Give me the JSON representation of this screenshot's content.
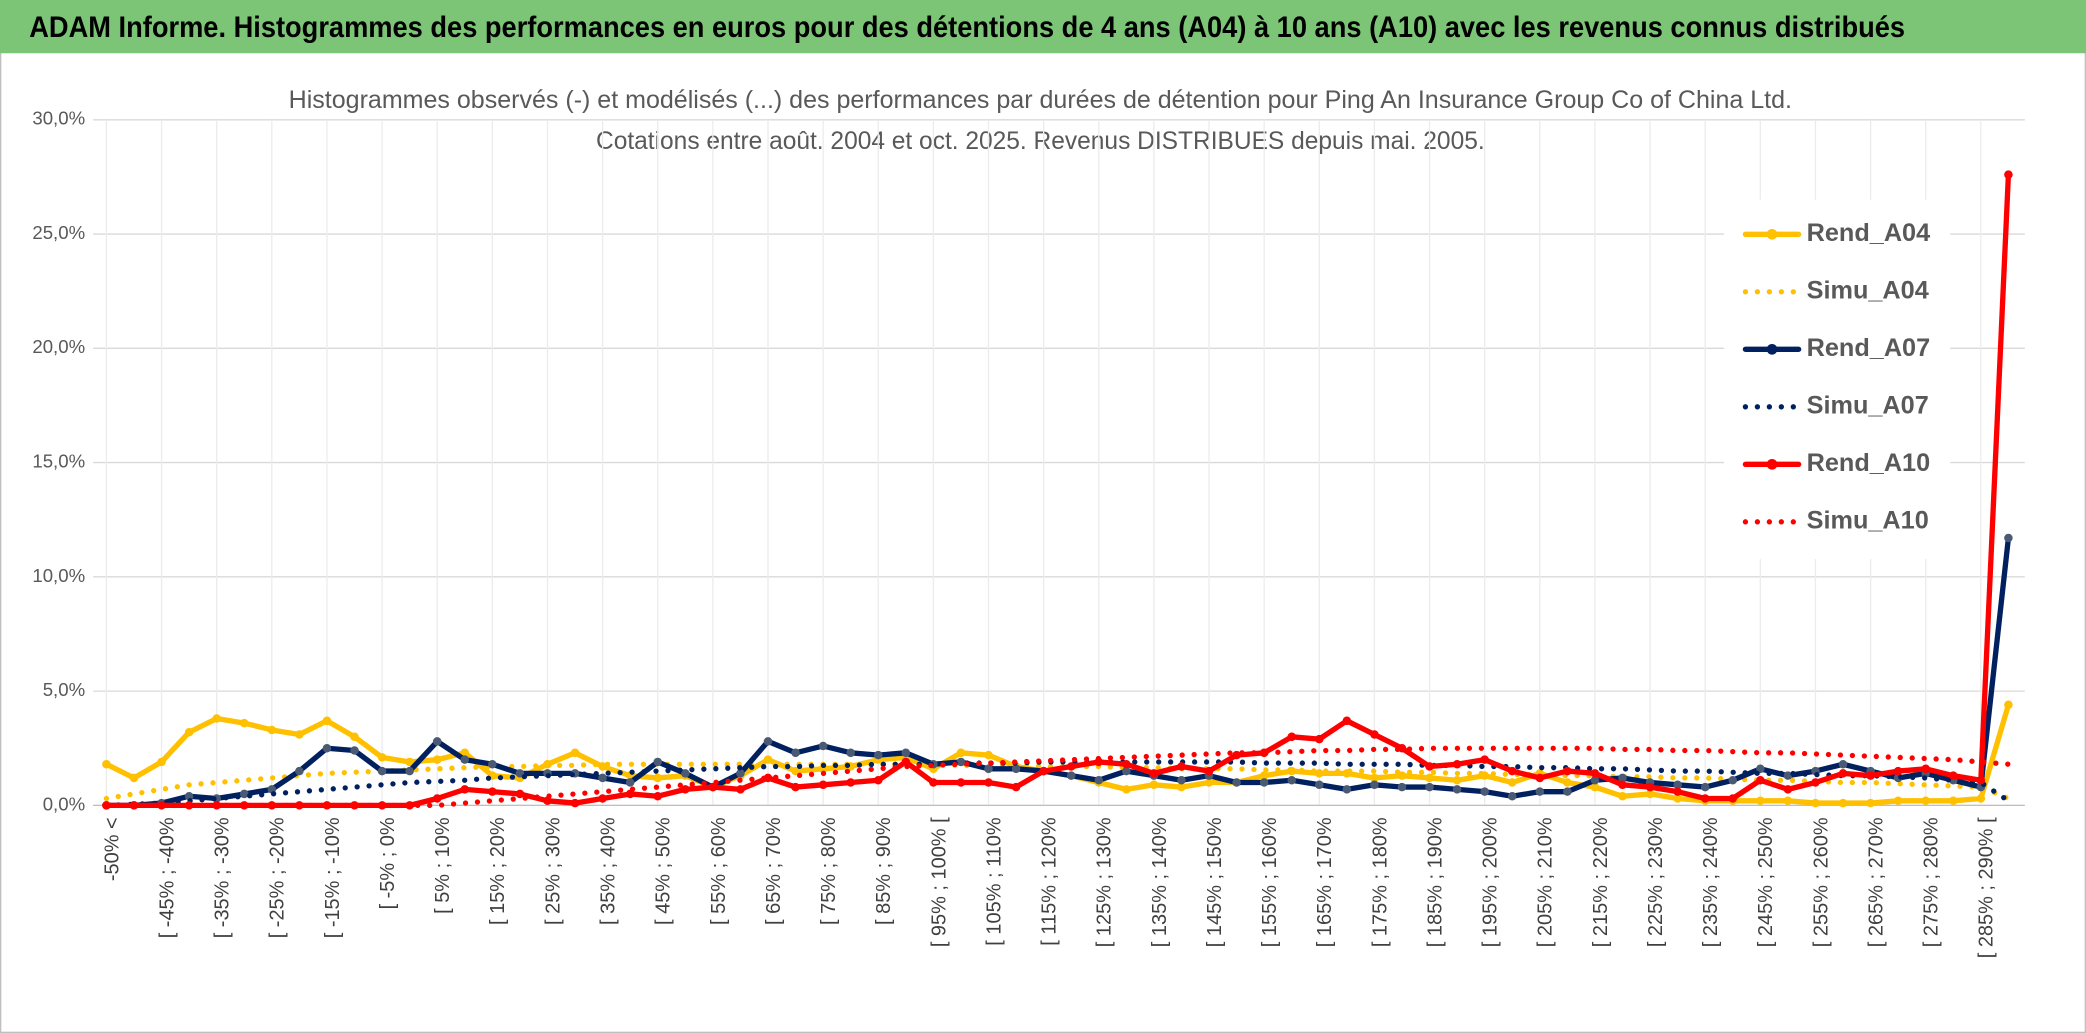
{
  "chart_data": {
    "type": "line",
    "title": "ADAM Informe. Histogrammes des performances en euros pour des détentions de 4 ans (A04) à 10 ans (A10) avec les revenus connus distribués",
    "chart_title": [
      "Histogrammes observés (-) et modélisés (...) des performances par durées de détention pour Ping An Insurance Group Co of China Ltd.",
      "Cotations entre août. 2004 et oct. 2025. Revenus DISTRIBUES depuis mai. 2005."
    ],
    "categories": [
      "-50% <",
      null,
      "[ -45% ; -40%",
      null,
      "[ -35% ; -30%",
      null,
      "[ -25% ; -20%",
      null,
      "[ -15% ; -10%",
      null,
      "[ -5% ; 0%",
      null,
      "[ 5% ; 10%",
      null,
      "[ 15% ; 20%",
      null,
      "[ 25% ; 30%",
      null,
      "[ 35% ; 40%",
      null,
      "[ 45% ; 50%",
      null,
      "[ 55% ; 60%",
      null,
      "[ 65% ; 70%",
      null,
      "[ 75% ; 80%",
      null,
      "[ 85% ; 90%",
      null,
      "[ 95% ; 100% [",
      null,
      "[ 105% ; 110%",
      null,
      "[ 115% ; 120%",
      null,
      "[ 125% ; 130%",
      null,
      "[ 135% ; 140%",
      null,
      "[ 145% ; 150%",
      null,
      "[ 155% ; 160%",
      null,
      "[ 165% ; 170%",
      null,
      "[ 175% ; 180%",
      null,
      "[ 185% ; 190%",
      null,
      "[ 195% ; 200%",
      null,
      "[ 205% ; 210%",
      null,
      "[ 215% ; 220%",
      null,
      "[ 225% ; 230%",
      null,
      "[ 235% ; 240%",
      null,
      "[ 245% ; 250%",
      null,
      "[ 255% ; 260%",
      null,
      "[ 265% ; 270%",
      null,
      "[ 275% ; 280%",
      null,
      "[ 285% ; 290% [",
      null
    ],
    "series": [
      {
        "name": "Rend_A04",
        "color": "#ffc000",
        "style": "solid",
        "values": [
          1.8,
          1.2,
          1.9,
          3.2,
          3.8,
          3.6,
          3.3,
          3.1,
          3.7,
          3.0,
          2.1,
          1.9,
          2.0,
          2.3,
          1.3,
          1.2,
          1.8,
          2.3,
          1.7,
          1.3,
          1.2,
          1.3,
          0.8,
          1.3,
          2.0,
          1.5,
          1.6,
          1.7,
          2.0,
          2.1,
          1.6,
          2.3,
          2.2,
          1.7,
          1.5,
          1.3,
          1.0,
          0.7,
          0.9,
          0.8,
          1.0,
          1.0,
          1.3,
          1.5,
          1.4,
          1.4,
          1.2,
          1.3,
          1.2,
          1.1,
          1.3,
          1.0,
          1.4,
          1.0,
          0.8,
          0.4,
          0.5,
          0.3,
          0.2,
          0.2,
          0.2,
          0.2,
          0.1,
          0.1,
          0.1,
          0.2,
          0.2,
          0.2,
          0.3,
          4.4
        ]
      },
      {
        "name": "Simu_A04",
        "color": "#ffc000",
        "style": "dotted",
        "values": [
          0.3,
          0.5,
          0.7,
          0.9,
          1.0,
          1.1,
          1.2,
          1.3,
          1.4,
          1.45,
          1.5,
          1.55,
          1.6,
          1.65,
          1.7,
          1.7,
          1.75,
          1.75,
          1.8,
          1.8,
          1.8,
          1.8,
          1.8,
          1.8,
          1.8,
          1.8,
          1.8,
          1.8,
          1.8,
          1.8,
          1.8,
          1.75,
          1.75,
          1.75,
          1.7,
          1.7,
          1.7,
          1.65,
          1.65,
          1.6,
          1.6,
          1.6,
          1.55,
          1.55,
          1.5,
          1.5,
          1.5,
          1.45,
          1.45,
          1.4,
          1.4,
          1.35,
          1.35,
          1.3,
          1.3,
          1.25,
          1.25,
          1.2,
          1.2,
          1.15,
          1.1,
          1.1,
          1.05,
          1.0,
          1.0,
          0.95,
          0.9,
          0.85,
          0.8,
          0.3
        ]
      },
      {
        "name": "Rend_A07",
        "color": "#002060",
        "style": "solid",
        "values": [
          0,
          0,
          0.1,
          0.4,
          0.3,
          0.5,
          0.7,
          1.5,
          2.5,
          2.4,
          1.5,
          1.5,
          2.8,
          2.0,
          1.8,
          1.4,
          1.4,
          1.4,
          1.2,
          1.0,
          1.9,
          1.4,
          0.8,
          1.4,
          2.8,
          2.3,
          2.6,
          2.3,
          2.2,
          2.3,
          1.8,
          1.9,
          1.6,
          1.6,
          1.5,
          1.3,
          1.1,
          1.5,
          1.3,
          1.1,
          1.3,
          1.0,
          1.0,
          1.1,
          0.9,
          0.7,
          0.9,
          0.8,
          0.8,
          0.7,
          0.6,
          0.4,
          0.6,
          0.6,
          1.1,
          1.2,
          1.0,
          0.9,
          0.8,
          1.1,
          1.6,
          1.3,
          1.5,
          1.8,
          1.5,
          1.2,
          1.4,
          1.1,
          0.8,
          11.7
        ]
      },
      {
        "name": "Simu_A07",
        "color": "#002060",
        "style": "dotted",
        "values": [
          0,
          0.05,
          0.1,
          0.2,
          0.3,
          0.4,
          0.5,
          0.6,
          0.7,
          0.8,
          0.9,
          1.0,
          1.05,
          1.1,
          1.2,
          1.25,
          1.3,
          1.35,
          1.4,
          1.45,
          1.5,
          1.55,
          1.6,
          1.65,
          1.7,
          1.7,
          1.75,
          1.75,
          1.8,
          1.8,
          1.8,
          1.85,
          1.85,
          1.85,
          1.9,
          1.9,
          1.9,
          1.9,
          1.9,
          1.9,
          1.9,
          1.9,
          1.85,
          1.85,
          1.85,
          1.8,
          1.8,
          1.8,
          1.75,
          1.75,
          1.7,
          1.7,
          1.65,
          1.65,
          1.6,
          1.6,
          1.55,
          1.5,
          1.5,
          1.45,
          1.4,
          1.4,
          1.35,
          1.3,
          1.3,
          1.25,
          1.2,
          1.1,
          1.0,
          0.2
        ]
      },
      {
        "name": "Rend_A10",
        "color": "#ff0000",
        "style": "solid",
        "values": [
          0,
          0,
          0,
          0,
          0,
          0,
          0,
          0,
          0,
          0,
          0,
          0,
          0.3,
          0.7,
          0.6,
          0.5,
          0.2,
          0.1,
          0.3,
          0.5,
          0.4,
          0.7,
          0.8,
          0.7,
          1.2,
          0.8,
          0.9,
          1.0,
          1.1,
          1.9,
          1.0,
          1.0,
          1.0,
          0.8,
          1.5,
          1.7,
          1.9,
          1.8,
          1.4,
          1.7,
          1.5,
          2.2,
          2.3,
          3.0,
          2.9,
          3.7,
          3.1,
          2.5,
          1.7,
          1.8,
          2.0,
          1.5,
          1.2,
          1.5,
          1.4,
          0.9,
          0.8,
          0.6,
          0.3,
          0.3,
          1.1,
          0.7,
          1.0,
          1.4,
          1.3,
          1.5,
          1.6,
          1.3,
          1.1,
          27.6
        ]
      },
      {
        "name": "Simu_A10",
        "color": "#ff0000",
        "style": "dotted",
        "values": [
          0,
          0,
          0,
          0,
          0,
          0,
          0,
          0,
          0,
          0,
          0,
          0,
          0,
          0.1,
          0.2,
          0.3,
          0.4,
          0.5,
          0.6,
          0.7,
          0.8,
          0.9,
          1.0,
          1.1,
          1.2,
          1.3,
          1.4,
          1.5,
          1.6,
          1.7,
          1.75,
          1.8,
          1.85,
          1.9,
          1.95,
          2.0,
          2.05,
          2.1,
          2.15,
          2.2,
          2.25,
          2.3,
          2.3,
          2.35,
          2.4,
          2.4,
          2.45,
          2.45,
          2.5,
          2.5,
          2.5,
          2.5,
          2.5,
          2.5,
          2.5,
          2.45,
          2.45,
          2.4,
          2.4,
          2.35,
          2.3,
          2.3,
          2.25,
          2.2,
          2.15,
          2.1,
          2.05,
          2.0,
          1.9,
          1.8
        ]
      }
    ],
    "ylim": [
      0,
      30
    ],
    "yticks": [
      {
        "value": 0,
        "label": "0,0%"
      },
      {
        "value": 5,
        "label": "5,0%"
      },
      {
        "value": 10,
        "label": "10,0%"
      },
      {
        "value": 15,
        "label": "15,0%"
      },
      {
        "value": 20,
        "label": "20,0%"
      },
      {
        "value": 25,
        "label": "25,0%"
      },
      {
        "value": 30,
        "label": "30,0%"
      }
    ],
    "grid": true,
    "legend": "right"
  }
}
